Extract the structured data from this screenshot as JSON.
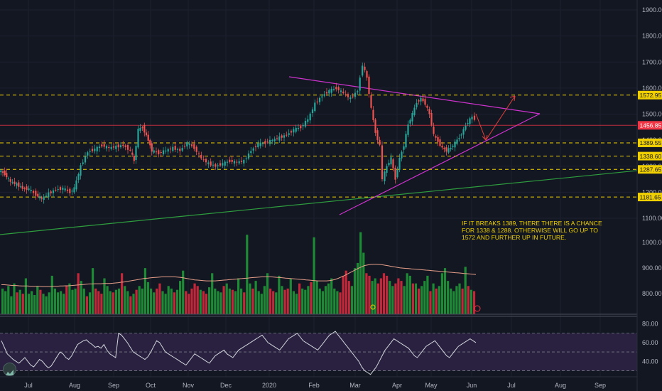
{
  "chart_data": [
    {
      "type": "candlestick",
      "title": "",
      "price_ticks": [
        "1900.00",
        "1800.00",
        "1700.00",
        "1600.00",
        "1500.00",
        "1400.00",
        "1300.00",
        "1200.00",
        "1100.00",
        "1000.00",
        "900.00",
        "800.00"
      ],
      "price_range": [
        730,
        1935
      ],
      "x_ticks": [
        "Jul",
        "Aug",
        "Sep",
        "Oct",
        "Nov",
        "Dec",
        "2020",
        "Feb",
        "Mar",
        "Apr",
        "May",
        "Jun",
        "Jul",
        "Aug",
        "Sep"
      ],
      "horizontal_levels": [
        {
          "value": 1572.95,
          "label": "1572.95",
          "style": "dashed",
          "color": "#f0d000"
        },
        {
          "value": 1456.85,
          "label": "1456.85",
          "style": "solid",
          "color": "#f23645"
        },
        {
          "value": 1389.55,
          "label": "1389.55",
          "style": "dashed",
          "color": "#f0d000"
        },
        {
          "value": 1338.6,
          "label": "1338.60",
          "style": "dashed",
          "color": "#f0d000"
        },
        {
          "value": 1287.65,
          "label": "1287.65",
          "style": "dashed",
          "color": "#f0d000"
        },
        {
          "value": 1181.65,
          "label": "1181.65",
          "style": "dashed",
          "color": "#f0d000"
        }
      ],
      "close_path": [
        [
          0,
          1285
        ],
        [
          8,
          1270
        ],
        [
          16,
          1240
        ],
        [
          25,
          1230
        ],
        [
          33,
          1215
        ],
        [
          42,
          1212
        ],
        [
          52,
          1190
        ],
        [
          60,
          1175
        ],
        [
          70,
          1195
        ],
        [
          80,
          1210
        ],
        [
          90,
          1215
        ],
        [
          100,
          1200
        ],
        [
          106,
          1215
        ],
        [
          115,
          1300
        ],
        [
          125,
          1355
        ],
        [
          135,
          1365
        ],
        [
          145,
          1380
        ],
        [
          155,
          1370
        ],
        [
          165,
          1375
        ],
        [
          175,
          1380
        ],
        [
          185,
          1360
        ],
        [
          190,
          1320
        ],
        [
          196,
          1440
        ],
        [
          202,
          1450
        ],
        [
          210,
          1400
        ],
        [
          215,
          1360
        ],
        [
          225,
          1350
        ],
        [
          235,
          1360
        ],
        [
          245,
          1370
        ],
        [
          255,
          1360
        ],
        [
          265,
          1390
        ],
        [
          275,
          1370
        ],
        [
          285,
          1330
        ],
        [
          295,
          1310
        ],
        [
          305,
          1300
        ],
        [
          315,
          1310
        ],
        [
          325,
          1320
        ],
        [
          335,
          1315
        ],
        [
          345,
          1320
        ],
        [
          355,
          1360
        ],
        [
          365,
          1385
        ],
        [
          375,
          1390
        ],
        [
          385,
          1400
        ],
        [
          395,
          1410
        ],
        [
          405,
          1420
        ],
        [
          415,
          1440
        ],
        [
          425,
          1450
        ],
        [
          435,
          1480
        ],
        [
          445,
          1540
        ],
        [
          455,
          1570
        ],
        [
          465,
          1590
        ],
        [
          475,
          1600
        ],
        [
          485,
          1580
        ],
        [
          495,
          1560
        ],
        [
          505,
          1590
        ],
        [
          512,
          1690
        ],
        [
          518,
          1640
        ],
        [
          524,
          1520
        ],
        [
          530,
          1430
        ],
        [
          536,
          1380
        ],
        [
          540,
          1250
        ],
        [
          546,
          1300
        ],
        [
          552,
          1330
        ],
        [
          558,
          1250
        ],
        [
          564,
          1330
        ],
        [
          570,
          1380
        ],
        [
          576,
          1460
        ],
        [
          582,
          1500
        ],
        [
          588,
          1545
        ],
        [
          594,
          1560
        ],
        [
          600,
          1540
        ],
        [
          606,
          1500
        ],
        [
          612,
          1420
        ],
        [
          618,
          1395
        ],
        [
          624,
          1370
        ],
        [
          630,
          1360
        ],
        [
          636,
          1370
        ],
        [
          642,
          1390
        ],
        [
          648,
          1410
        ],
        [
          654,
          1440
        ],
        [
          660,
          1470
        ],
        [
          666,
          1490
        ],
        [
          670,
          1480
        ]
      ],
      "volume_scale": {
        "ticks": [
          "1000.00",
          "900.00",
          "800.00"
        ],
        "range": [
          720,
          1050
        ]
      },
      "volume_bars": [
        820,
        810,
        830,
        790,
        840,
        805,
        815,
        800,
        860,
        800,
        810,
        795,
        830,
        815,
        800,
        790,
        805,
        870,
        820,
        805,
        810,
        800,
        830,
        840,
        815,
        820,
        880,
        850,
        820,
        790,
        805,
        900,
        820,
        810,
        800,
        860,
        830,
        810,
        805,
        815,
        820,
        880,
        830,
        810,
        790,
        800,
        815,
        830,
        820,
        900,
        845,
        820,
        805,
        820,
        840,
        810,
        800,
        830,
        820,
        805,
        815,
        850,
        890,
        810,
        800,
        820,
        840,
        830,
        815,
        810,
        800,
        825,
        880,
        820,
        810,
        805,
        830,
        840,
        820,
        815,
        810,
        860,
        820,
        805,
        1030,
        840,
        820,
        850,
        810,
        800,
        830,
        880,
        820,
        810,
        805,
        870,
        830,
        815,
        820,
        860,
        810,
        800,
        840,
        820,
        815,
        830,
        845,
        1020,
        850,
        820,
        810,
        830,
        840,
        860,
        820,
        810,
        805,
        870,
        890,
        850,
        830,
        900,
        920,
        1040,
        960,
        880,
        870,
        850,
        860,
        840,
        860,
        880,
        870,
        850,
        830,
        840,
        860,
        850,
        830,
        880,
        870,
        840,
        840,
        820,
        830,
        850,
        870,
        810,
        840,
        820,
        830,
        880,
        900,
        850,
        820,
        810,
        830,
        840,
        820,
        905,
        830,
        815,
        810
      ],
      "volume_ma": [
        835,
        835,
        834,
        833,
        832,
        832,
        831,
        830,
        830,
        830,
        829,
        829,
        829,
        829,
        828,
        828,
        828,
        828,
        829,
        829,
        830,
        830,
        831,
        831,
        832,
        833,
        834,
        835,
        836,
        837,
        838,
        838,
        839,
        839,
        839,
        840,
        840,
        840,
        841,
        842,
        843,
        845,
        846,
        848,
        850,
        852,
        854,
        856,
        858,
        860,
        861,
        862,
        863,
        864,
        865,
        866,
        866,
        866,
        866,
        866,
        865,
        864,
        862,
        860,
        858,
        856,
        854,
        853,
        852,
        851,
        850,
        850,
        850,
        850,
        851,
        852,
        853,
        854,
        855,
        856,
        857,
        858,
        859,
        860,
        861,
        862,
        863,
        864,
        865,
        866,
        866,
        866,
        866,
        865,
        864,
        863,
        862,
        861,
        860,
        859,
        858,
        857,
        856,
        855,
        854,
        853,
        852,
        851,
        850,
        850,
        850,
        850,
        851,
        853,
        856,
        860,
        865,
        870,
        876,
        882,
        888,
        894,
        900,
        905,
        910,
        912,
        914,
        915,
        915,
        914,
        913,
        911,
        909,
        907,
        905,
        903,
        901,
        900,
        899,
        898,
        897,
        896,
        895,
        894,
        893,
        892,
        891,
        890,
        889,
        888,
        887,
        886,
        885,
        884,
        883,
        882,
        881,
        880,
        879,
        878,
        877,
        876,
        875
      ],
      "rsi_scale": {
        "ticks": [
          "80.00",
          "60.00",
          "40.00"
        ],
        "range": [
          25,
          85
        ]
      },
      "rsi_levels": [
        70,
        50,
        30
      ],
      "rsi": [
        62,
        55,
        48,
        45,
        42,
        40,
        38,
        41,
        44,
        40,
        36,
        34,
        38,
        42,
        40,
        36,
        33,
        35,
        40,
        45,
        50,
        48,
        44,
        42,
        46,
        52,
        58,
        60,
        62,
        63,
        60,
        58,
        55,
        56,
        54,
        58,
        52,
        48,
        46,
        44,
        70,
        68,
        64,
        60,
        55,
        50,
        48,
        46,
        44,
        42,
        45,
        50,
        56,
        62,
        60,
        55,
        50,
        48,
        46,
        44,
        42,
        40,
        38,
        36,
        40,
        44,
        48,
        46,
        44,
        42,
        40,
        38,
        42,
        46,
        48,
        50,
        52,
        48,
        46,
        44,
        48,
        52,
        54,
        56,
        58,
        60,
        62,
        64,
        66,
        68,
        64,
        60,
        58,
        56,
        54,
        52,
        56,
        60,
        64,
        66,
        68,
        70,
        66,
        62,
        60,
        58,
        56,
        54,
        52,
        56,
        60,
        64,
        68,
        70,
        72,
        68,
        64,
        60,
        56,
        52,
        48,
        44,
        40,
        34,
        30,
        28,
        26,
        30,
        34,
        40,
        46,
        52,
        56,
        60,
        64,
        62,
        60,
        58,
        56,
        54,
        50,
        46,
        44,
        48,
        52,
        56,
        58,
        60,
        62,
        58,
        54,
        50,
        46,
        44,
        48,
        52,
        56,
        58,
        60,
        62,
        64,
        62,
        60
      ]
    }
  ],
  "annotation": "If it breaks 1389, there there is a chance for 1338 & 1288. Otherwise will go up to 1572 and further up in future.",
  "colors": {
    "up": "#26a69a",
    "down": "#ef5350",
    "vol_up": "#1e8a35",
    "vol_down": "#c2283a",
    "background": "#131722",
    "rsi_band": "#2a2140"
  },
  "icons": {
    "logo": "tradingview-logo-icon"
  }
}
